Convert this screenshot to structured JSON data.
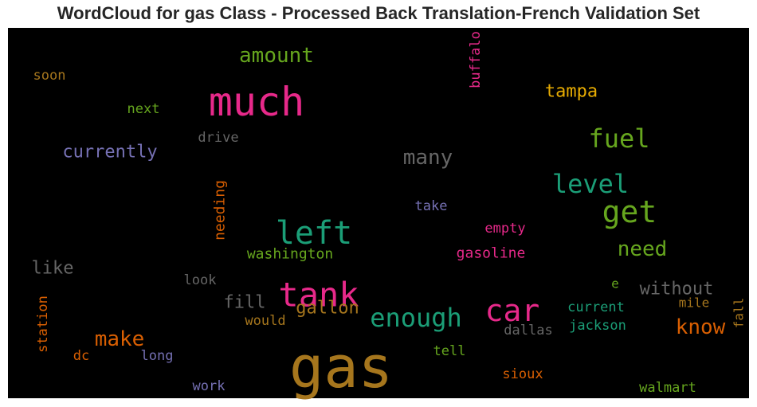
{
  "chart_data": {
    "type": "wordcloud",
    "title": "WordCloud for gas Class - Processed Back Translation-French Validation Set",
    "background": "#000000",
    "words": [
      {
        "text": "gas",
        "color": "#a6761d"
      },
      {
        "text": "much",
        "color": "#e7298a"
      },
      {
        "text": "tank",
        "color": "#e7298a"
      },
      {
        "text": "left",
        "color": "#1b9e77"
      },
      {
        "text": "car",
        "color": "#e7298a"
      },
      {
        "text": "get",
        "color": "#66a61e"
      },
      {
        "text": "enough",
        "color": "#1b9e77"
      },
      {
        "text": "fuel",
        "color": "#66a61e"
      },
      {
        "text": "level",
        "color": "#1b9e77"
      },
      {
        "text": "many",
        "color": "#666666"
      },
      {
        "text": "amount",
        "color": "#66a61e"
      },
      {
        "text": "make",
        "color": "#d95f02"
      },
      {
        "text": "know",
        "color": "#d95f02"
      },
      {
        "text": "need",
        "color": "#66a61e"
      },
      {
        "text": "currently",
        "color": "#7570b3"
      },
      {
        "text": "tampa",
        "color": "#e6ab02"
      },
      {
        "text": "without",
        "color": "#666666"
      },
      {
        "text": "fill",
        "color": "#666666"
      },
      {
        "text": "like",
        "color": "#666666"
      },
      {
        "text": "gallon",
        "color": "#a6761d"
      },
      {
        "text": "washington",
        "color": "#66a61e"
      },
      {
        "text": "gasoline",
        "color": "#e7298a"
      },
      {
        "text": "buffalo",
        "color": "#e7298a"
      },
      {
        "text": "needing",
        "color": "#d95f02"
      },
      {
        "text": "station",
        "color": "#d95f02"
      },
      {
        "text": "drive",
        "color": "#666666"
      },
      {
        "text": "next",
        "color": "#66a61e"
      },
      {
        "text": "soon",
        "color": "#a6761d"
      },
      {
        "text": "take",
        "color": "#7570b3"
      },
      {
        "text": "empty",
        "color": "#e7298a"
      },
      {
        "text": "look",
        "color": "#666666"
      },
      {
        "text": "would",
        "color": "#a6761d"
      },
      {
        "text": "current",
        "color": "#1b9e77"
      },
      {
        "text": "jackson",
        "color": "#1b9e77"
      },
      {
        "text": "dallas",
        "color": "#666666"
      },
      {
        "text": "mile",
        "color": "#a6761d"
      },
      {
        "text": "fall",
        "color": "#a6761d"
      },
      {
        "text": "e",
        "color": "#66a61e"
      },
      {
        "text": "dc",
        "color": "#d95f02"
      },
      {
        "text": "long",
        "color": "#7570b3"
      },
      {
        "text": "tell",
        "color": "#66a61e"
      },
      {
        "text": "sioux",
        "color": "#d95f02"
      },
      {
        "text": "work",
        "color": "#7570b3"
      },
      {
        "text": "walmart",
        "color": "#66a61e"
      }
    ]
  }
}
